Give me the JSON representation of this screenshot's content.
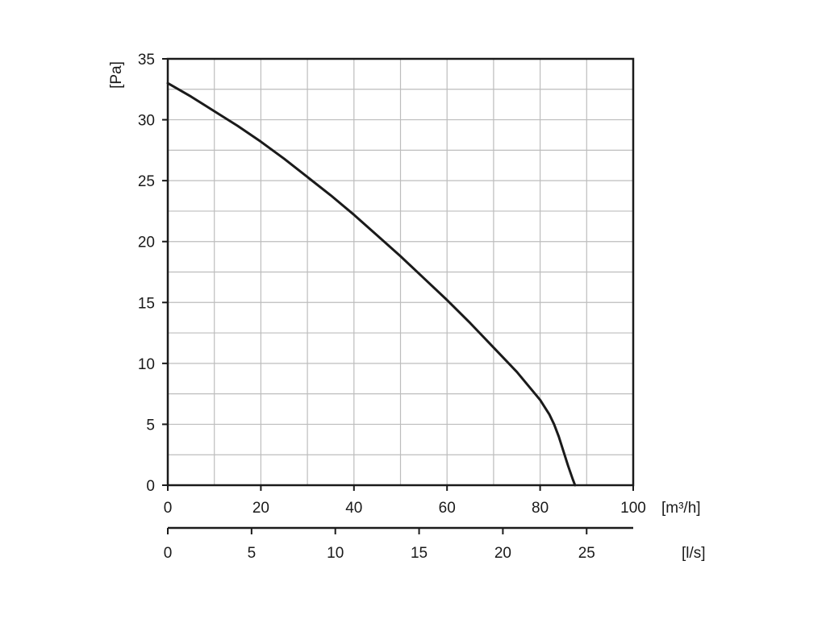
{
  "chart_data": {
    "type": "line",
    "title": "",
    "xlabel": "[m³/h]",
    "ylabel": "[Pa]",
    "secondary_xlabel": "[l/s]",
    "xlim": [
      0,
      100
    ],
    "ylim": [
      0,
      35
    ],
    "secondary_xlim": [
      0,
      27.78
    ],
    "x_ticks": [
      "0",
      "20",
      "40",
      "60",
      "80",
      "100"
    ],
    "x_tick_values": [
      0,
      20,
      40,
      60,
      80,
      100
    ],
    "y_ticks": [
      "0",
      "5",
      "10",
      "15",
      "20",
      "25",
      "30",
      "35"
    ],
    "y_tick_values": [
      0,
      5,
      10,
      15,
      20,
      25,
      30,
      35
    ],
    "secondary_x_ticks": [
      "0",
      "5",
      "10",
      "15",
      "20",
      "25"
    ],
    "secondary_x_tick_values": [
      0,
      5,
      10,
      15,
      20,
      25
    ],
    "grid": true,
    "grid_minor_x_step": 10,
    "grid_minor_y_step": 2.5,
    "line_color": "#1a1a1a",
    "grid_color": "#bdbdbd",
    "series": [
      {
        "x": [
          0,
          5,
          10,
          15,
          20,
          25,
          30,
          35,
          40,
          45,
          50,
          55,
          60,
          65,
          70,
          75,
          80,
          82,
          83,
          84,
          85,
          86,
          87,
          87.5
        ],
        "y": [
          33,
          31.9,
          30.7,
          29.5,
          28.2,
          26.8,
          25.3,
          23.8,
          22.2,
          20.5,
          18.8,
          17,
          15.2,
          13.3,
          11.3,
          9.3,
          7,
          5.8,
          5,
          4,
          2.8,
          1.6,
          0.5,
          0
        ]
      }
    ]
  }
}
